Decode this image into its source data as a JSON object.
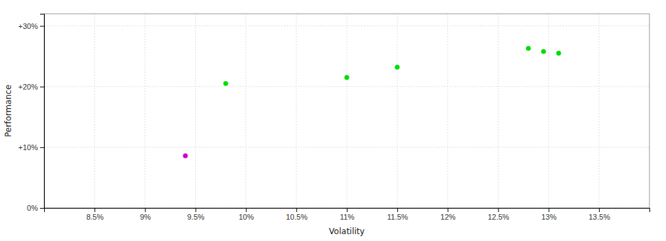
{
  "chart_data": {
    "type": "scatter",
    "xlabel": "Volatility",
    "ylabel": "Performance",
    "xlim": [
      0.08,
      0.14
    ],
    "ylim": [
      0.0,
      0.32
    ],
    "xticks": [
      {
        "value": 0.085,
        "label": "8.5%"
      },
      {
        "value": 0.09,
        "label": "9%"
      },
      {
        "value": 0.095,
        "label": "9.5%"
      },
      {
        "value": 0.1,
        "label": "10%"
      },
      {
        "value": 0.105,
        "label": "10.5%"
      },
      {
        "value": 0.11,
        "label": "11%"
      },
      {
        "value": 0.115,
        "label": "11.5%"
      },
      {
        "value": 0.12,
        "label": "12%"
      },
      {
        "value": 0.125,
        "label": "12.5%"
      },
      {
        "value": 0.13,
        "label": "13%"
      },
      {
        "value": 0.135,
        "label": "13.5%"
      }
    ],
    "yticks": [
      {
        "value": 0.0,
        "label": "0%"
      },
      {
        "value": 0.1,
        "label": "+10%"
      },
      {
        "value": 0.2,
        "label": "+20%"
      },
      {
        "value": 0.3,
        "label": "+30%"
      }
    ],
    "grid": true,
    "series": [
      {
        "color": "#00dd00",
        "x": [
          0.098,
          0.11,
          0.115,
          0.128,
          0.1295,
          0.131
        ],
        "values": [
          0.205,
          0.215,
          0.232,
          0.263,
          0.258,
          0.255
        ]
      },
      {
        "color": "#cc00cc",
        "x": [
          0.094
        ],
        "values": [
          0.086
        ]
      }
    ]
  }
}
